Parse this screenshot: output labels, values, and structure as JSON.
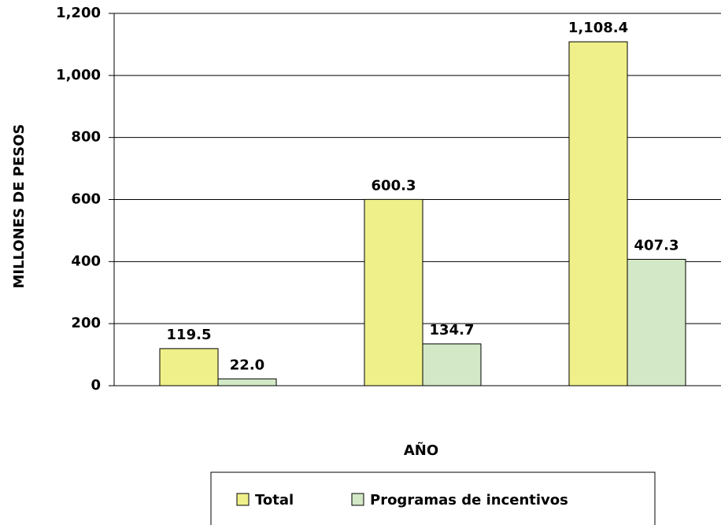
{
  "chart_data": {
    "type": "bar",
    "categories": [
      null,
      null,
      null
    ],
    "series": [
      {
        "name": "Total",
        "color": "#f0f08a",
        "values": [
          119.5,
          600.3,
          1108.4
        ],
        "value_labels": [
          "119.5",
          "600.3",
          "1,108.4"
        ]
      },
      {
        "name": "Programas de incentivos",
        "color": "#d2e8c6",
        "values": [
          22.0,
          134.7,
          407.3
        ],
        "value_labels": [
          "22.0",
          "134.7",
          "407.3"
        ]
      }
    ],
    "xlabel": "AÑO",
    "ylabel": "MILLONES DE PESOS",
    "ylim": [
      0,
      1200
    ],
    "yticks": [
      0,
      200,
      400,
      600,
      800,
      {
        "value": 1000,
        "label": "1,000"
      },
      {
        "value": 1200,
        "label": "1,200"
      }
    ],
    "grid": true,
    "legend": "bottom"
  }
}
